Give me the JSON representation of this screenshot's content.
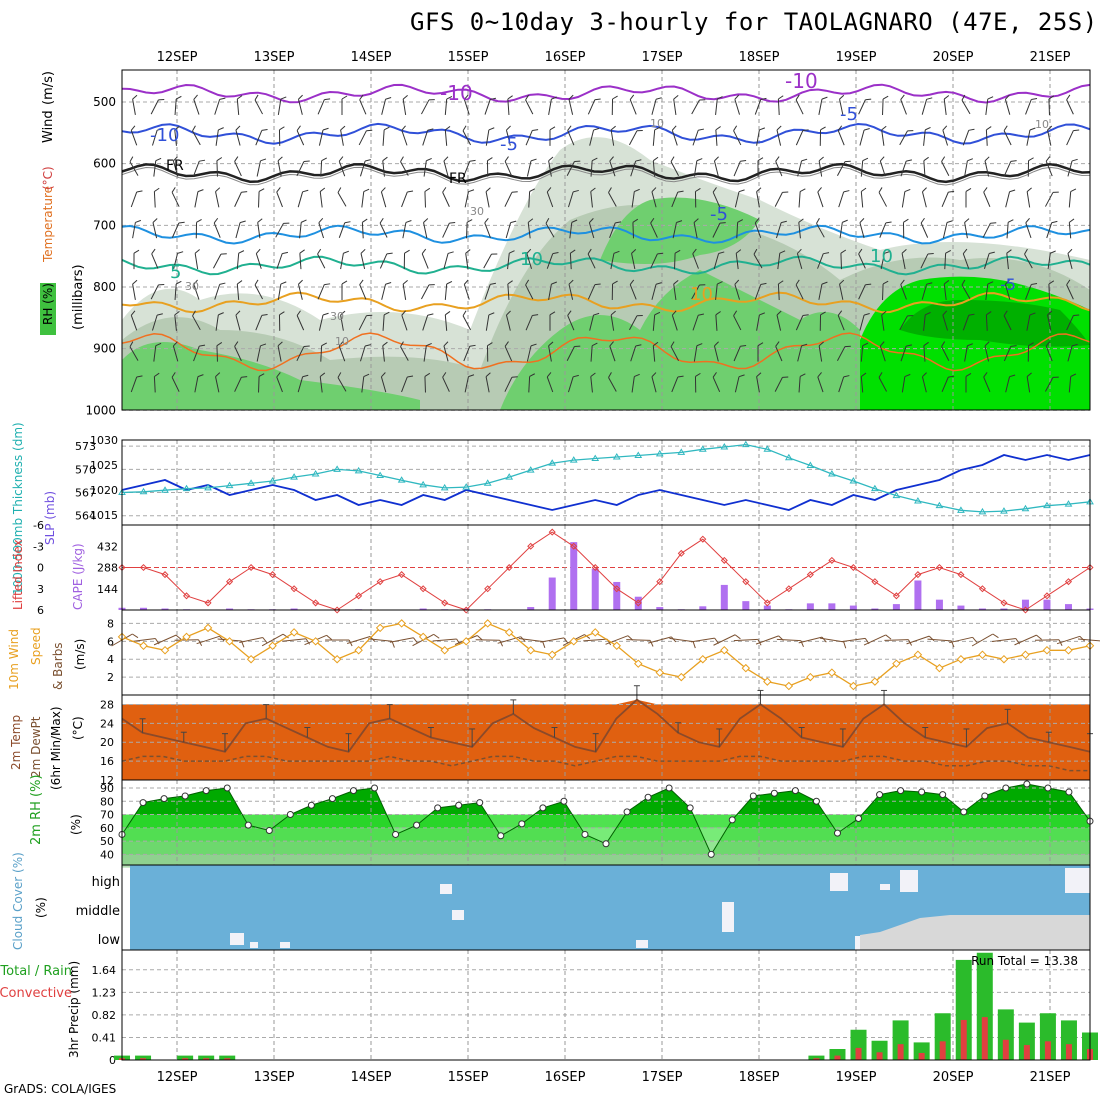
{
  "title": "GFS 0~10day 3-hourly for TAOLAGNARO (47E, 25S)",
  "footer": "GrADS: COLA/IGES",
  "date_labels": [
    "12SEP",
    "13SEP",
    "14SEP",
    "15SEP",
    "16SEP",
    "17SEP",
    "18SEP",
    "19SEP",
    "20SEP",
    "21SEP"
  ],
  "chart_data": {
    "type": "meteogram",
    "title": "GFS 0~10day 3-hourly for TAOLAGNARO (47E, 25S)",
    "x_days": [
      "12SEP",
      "13SEP",
      "14SEP",
      "15SEP",
      "16SEP",
      "17SEP",
      "18SEP",
      "19SEP",
      "20SEP",
      "21SEP"
    ],
    "upper_air": {
      "ylabel_parts": [
        "RH (%)",
        "Temperature",
        "(°C)",
        "Wind",
        "(m/s)",
        "(millibars)"
      ],
      "levels": [
        500,
        600,
        700,
        800,
        900,
        1000
      ],
      "contour_labels": [
        "-10",
        "-10",
        "-10",
        "-5",
        "-5",
        "-5",
        "-5",
        "FR",
        "FR",
        "5",
        "10",
        "10",
        "10",
        "15",
        "30",
        "30",
        "30",
        "10",
        "10"
      ],
      "rh_colors": [
        "#d7e2d6",
        "#b7cbb4",
        "#6fcf6f",
        "#00e000",
        "#00b000"
      ]
    },
    "slp_thickness": {
      "ylabel_left": "1000-500mb Thickness (dm)",
      "ylabel_right": "SLP (mb)",
      "thickness_ticks": [
        564,
        567,
        570,
        573
      ],
      "slp_ticks": [
        1015,
        1020,
        1025,
        1030
      ],
      "slp": [
        1020,
        1021,
        1022,
        1020,
        1021,
        1019,
        1020,
        1021,
        1020,
        1018,
        1019,
        1017,
        1018,
        1017,
        1019,
        1018,
        1020,
        1019,
        1018,
        1017,
        1016,
        1017,
        1018,
        1017,
        1019,
        1020,
        1019,
        1018,
        1017,
        1018,
        1017,
        1016,
        1018,
        1017,
        1019,
        1018,
        1020,
        1021,
        1022,
        1024,
        1025,
        1027,
        1026,
        1027,
        1026,
        1027
      ],
      "thickness": [
        567.0,
        567.1,
        567.3,
        567.5,
        567.6,
        567.9,
        568.2,
        568.5,
        569.0,
        569.4,
        570.0,
        569.8,
        569.2,
        568.6,
        568.0,
        567.6,
        567.7,
        568.2,
        569.0,
        569.9,
        570.8,
        571.2,
        571.4,
        571.6,
        571.8,
        572.0,
        572.2,
        572.6,
        572.9,
        573.2,
        572.6,
        571.5,
        570.5,
        569.4,
        568.5,
        567.5,
        566.6,
        565.9,
        565.3,
        564.7,
        564.5,
        564.6,
        564.9,
        565.3,
        565.5,
        565.8
      ]
    },
    "cape_li": {
      "ylabel_left": "Lifted Index",
      "ylabel_right": "CAPE (J/kg)",
      "li_ticks": [
        6,
        3,
        0,
        -3,
        -6
      ],
      "cape_ticks": [
        144,
        288,
        432
      ],
      "lifted_index": [
        0,
        0,
        1,
        4,
        5,
        2,
        0,
        1,
        3,
        5,
        6,
        4,
        2,
        1,
        3,
        5,
        6,
        3,
        0,
        -3,
        -5,
        -3,
        0,
        3,
        5,
        2,
        -2,
        -4,
        -1,
        2,
        5,
        3,
        1,
        -1,
        0,
        2,
        4,
        1,
        0,
        1,
        3,
        5,
        6,
        4,
        2,
        0
      ],
      "cape": [
        15,
        15,
        10,
        5,
        0,
        10,
        5,
        5,
        10,
        0,
        0,
        5,
        0,
        0,
        10,
        5,
        10,
        5,
        0,
        20,
        220,
        460,
        280,
        190,
        90,
        20,
        5,
        25,
        170,
        60,
        30,
        5,
        45,
        45,
        30,
        10,
        40,
        200,
        70,
        30,
        10,
        10,
        70,
        70,
        40,
        10
      ]
    },
    "wind10m": {
      "ylabel": "10m Wind Speed & Barbs (m/s)",
      "ticks": [
        2,
        4,
        6,
        8
      ],
      "speed": [
        6.5,
        5.5,
        5.0,
        6.5,
        7.5,
        6.0,
        4.0,
        5.5,
        7.0,
        6.0,
        4.0,
        5.0,
        7.5,
        8.0,
        6.5,
        5.0,
        6.0,
        8.0,
        7.0,
        5.0,
        4.5,
        6.0,
        7.0,
        5.5,
        3.5,
        2.5,
        2.0,
        4.0,
        5.0,
        3.0,
        1.5,
        1.0,
        2.0,
        2.5,
        1.0,
        1.5,
        3.5,
        4.5,
        3.0,
        4.0,
        4.5,
        4.0,
        4.5,
        5.0,
        5.0,
        5.5
      ]
    },
    "temp2m": {
      "ylabel": "2m Temp 2m DewPt (6hr Min/Max) (°C)",
      "ticks": [
        12,
        16,
        20,
        24,
        28
      ],
      "temp": [
        25,
        22,
        21,
        20,
        19,
        18,
        24,
        25,
        23,
        21,
        19,
        18,
        24,
        25,
        23,
        21,
        20,
        19,
        24,
        26,
        23,
        21,
        19,
        18,
        25,
        29,
        26,
        22,
        20,
        19,
        25,
        28,
        25,
        21,
        20,
        19,
        25,
        28,
        24,
        21,
        20,
        19,
        23,
        24,
        21,
        20,
        19,
        18
      ],
      "dewpt": [
        16,
        17,
        17,
        16,
        16,
        16,
        17,
        17,
        16,
        16,
        16,
        16,
        16,
        17,
        16,
        16,
        15,
        16,
        17,
        17,
        16,
        16,
        15,
        16,
        17,
        17,
        16,
        16,
        16,
        16,
        17,
        17,
        16,
        16,
        16,
        16,
        17,
        17,
        16,
        16,
        15,
        15,
        16,
        16,
        15,
        15,
        14,
        14
      ]
    },
    "rh2m": {
      "ylabel": "2m RH (%)",
      "ticks": [
        40,
        50,
        60,
        70,
        80,
        90
      ],
      "rh": [
        55,
        79,
        82,
        84,
        88,
        90,
        62,
        58,
        70,
        77,
        82,
        88,
        90,
        55,
        62,
        75,
        77,
        79,
        54,
        63,
        75,
        80,
        55,
        48,
        72,
        83,
        90,
        75,
        40,
        66,
        84,
        86,
        88,
        80,
        56,
        67,
        85,
        88,
        87,
        85,
        72,
        84,
        90,
        93,
        90,
        87,
        65
      ]
    },
    "cloud_cover": {
      "ylabel": "Cloud Cover (%)",
      "rows": [
        "high",
        "middle",
        "low"
      ]
    },
    "precip": {
      "ylabel": "3hr Precip (mm)",
      "ylabel_left": "Total / Rain",
      "ylabel_left2": "Convective",
      "run_total_label": "Run Total = 13.38",
      "ticks": [
        0,
        0.41,
        0.82,
        1.23,
        1.64
      ],
      "total": [
        0.08,
        0.08,
        0,
        0.08,
        0.08,
        0.08,
        0,
        0,
        0,
        0,
        0,
        0,
        0,
        0,
        0,
        0,
        0,
        0,
        0,
        0,
        0,
        0,
        0,
        0,
        0,
        0,
        0,
        0,
        0,
        0,
        0,
        0,
        0,
        0.08,
        0.2,
        0.55,
        0.35,
        0.72,
        0.32,
        0.85,
        1.82,
        1.95,
        0.92,
        0.68,
        0.85,
        0.72,
        0.5
      ]
    }
  }
}
